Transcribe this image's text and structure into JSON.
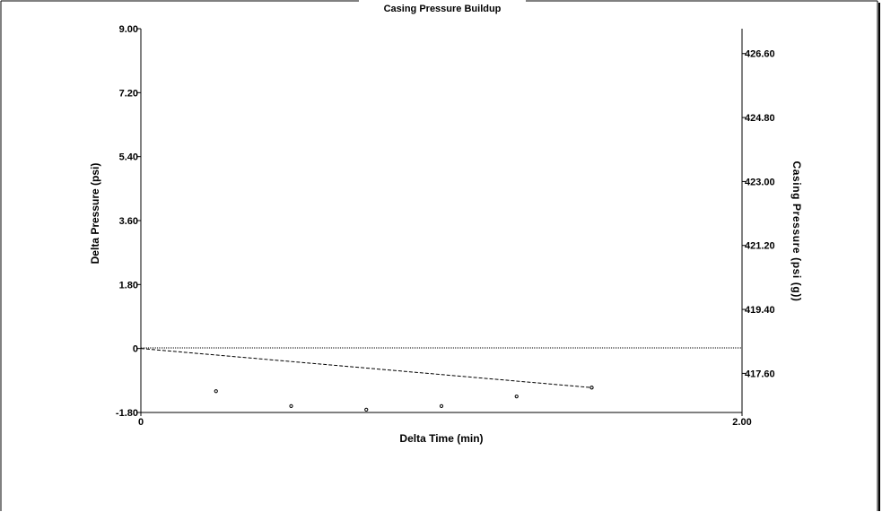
{
  "chart_data": {
    "type": "scatter",
    "title": "Casing Pressure Buildup",
    "xlabel": "Delta Time (min)",
    "ylabel": "Delta Pressure (psi)",
    "y2label": "Casing Pressure (psi (g))",
    "xlim": [
      0,
      2.0
    ],
    "ylim": [
      -1.8,
      9.0
    ],
    "y2lim": [
      416.5,
      427.3
    ],
    "x_tick_labels": [
      "0",
      "2.00"
    ],
    "y_tick_labels": [
      "-1.80",
      "0",
      "1.80",
      "3.60",
      "5.40",
      "7.20",
      "9.00"
    ],
    "y2_tick_labels": [
      "417.60",
      "419.40",
      "421.20",
      "423.00",
      "424.80",
      "426.60"
    ],
    "grid": false,
    "series": [
      {
        "type": "scatter",
        "x": [
          0.25,
          0.5,
          0.75,
          1.0,
          1.25,
          1.5
        ],
        "y": [
          -1.2,
          -1.62,
          -1.72,
          -1.62,
          -1.35,
          -1.1
        ]
      },
      {
        "type": "line",
        "style": "dashed",
        "x": [
          0,
          1.5
        ],
        "y": [
          0,
          -1.1
        ]
      }
    ],
    "reference_lines": [
      {
        "axis": "y",
        "value": 0,
        "style": "dotted"
      }
    ],
    "colors": {
      "axis": "#000000",
      "background": "#ffffff",
      "border": "#000000"
    }
  }
}
